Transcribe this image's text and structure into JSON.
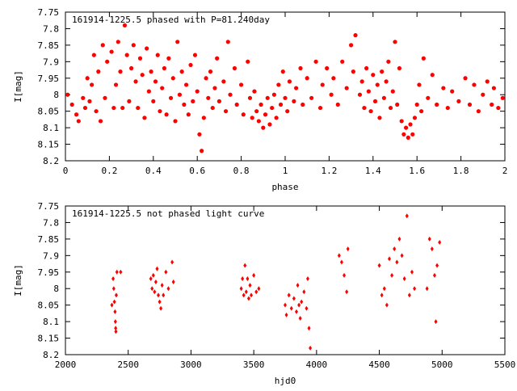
{
  "chart_data": [
    {
      "type": "scatter",
      "title": "161914-1225.5 phased with P=81.240day",
      "xlabel": "phase",
      "ylabel": "I[mag]",
      "xlim": [
        0,
        2
      ],
      "ylim": [
        7.75,
        8.2
      ],
      "y_inverted": true,
      "grid": false,
      "marker_color": "#ff0000",
      "marker": "filled circle",
      "xticks": [
        "0",
        "0.2",
        "0.4",
        "0.6",
        "0.8",
        "1",
        "1.2",
        "1.4",
        "1.6",
        "1.8",
        "2"
      ],
      "yticks": [
        "7.75",
        "7.8",
        "7.85",
        "7.9",
        "7.95",
        "8",
        "8.05",
        "8.1",
        "8.15",
        "8.2"
      ],
      "points": [
        [
          0.01,
          8.0
        ],
        [
          0.03,
          8.03
        ],
        [
          0.05,
          8.06
        ],
        [
          0.06,
          8.08
        ],
        [
          0.08,
          8.01
        ],
        [
          0.09,
          8.04
        ],
        [
          0.1,
          7.95
        ],
        [
          0.11,
          8.02
        ],
        [
          0.12,
          7.97
        ],
        [
          0.13,
          7.88
        ],
        [
          0.14,
          8.05
        ],
        [
          0.15,
          7.93
        ],
        [
          0.16,
          8.08
        ],
        [
          0.17,
          7.85
        ],
        [
          0.18,
          8.01
        ],
        [
          0.19,
          7.9
        ],
        [
          0.21,
          7.87
        ],
        [
          0.22,
          8.04
        ],
        [
          0.23,
          7.97
        ],
        [
          0.24,
          7.84
        ],
        [
          0.25,
          7.93
        ],
        [
          0.26,
          8.04
        ],
        [
          0.27,
          7.79
        ],
        [
          0.28,
          7.88
        ],
        [
          0.29,
          8.02
        ],
        [
          0.3,
          7.92
        ],
        [
          0.31,
          7.85
        ],
        [
          0.32,
          7.96
        ],
        [
          0.33,
          8.04
        ],
        [
          0.34,
          7.89
        ],
        [
          0.35,
          7.94
        ],
        [
          0.36,
          8.07
        ],
        [
          0.37,
          7.86
        ],
        [
          0.38,
          7.99
        ],
        [
          0.39,
          7.93
        ],
        [
          0.4,
          8.02
        ],
        [
          0.41,
          7.96
        ],
        [
          0.42,
          7.88
        ],
        [
          0.43,
          8.05
        ],
        [
          0.44,
          7.98
        ],
        [
          0.45,
          7.92
        ],
        [
          0.46,
          8.06
        ],
        [
          0.47,
          7.89
        ],
        [
          0.48,
          8.01
        ],
        [
          0.49,
          7.95
        ],
        [
          0.5,
          8.08
        ],
        [
          0.51,
          7.84
        ],
        [
          0.52,
          8.0
        ],
        [
          0.53,
          7.93
        ],
        [
          0.54,
          8.03
        ],
        [
          0.55,
          7.97
        ],
        [
          0.56,
          8.06
        ],
        [
          0.57,
          7.91
        ],
        [
          0.58,
          8.02
        ],
        [
          0.59,
          7.88
        ],
        [
          0.6,
          7.99
        ],
        [
          0.61,
          8.12
        ],
        [
          0.62,
          8.17
        ],
        [
          0.63,
          8.07
        ],
        [
          0.64,
          7.95
        ],
        [
          0.65,
          8.01
        ],
        [
          0.66,
          7.93
        ],
        [
          0.67,
          8.04
        ],
        [
          0.68,
          7.98
        ],
        [
          0.69,
          7.89
        ],
        [
          0.7,
          8.02
        ],
        [
          0.72,
          7.96
        ],
        [
          0.73,
          8.05
        ],
        [
          0.74,
          7.84
        ],
        [
          0.75,
          8.0
        ],
        [
          0.77,
          7.92
        ],
        [
          0.78,
          8.03
        ],
        [
          0.8,
          7.97
        ],
        [
          0.81,
          8.06
        ],
        [
          0.83,
          7.9
        ],
        [
          0.84,
          8.01
        ],
        [
          0.85,
          8.07
        ],
        [
          0.86,
          7.99
        ],
        [
          0.87,
          8.05
        ],
        [
          0.88,
          8.08
        ],
        [
          0.89,
          8.03
        ],
        [
          0.9,
          8.1
        ],
        [
          0.91,
          8.06
        ],
        [
          0.92,
          8.01
        ],
        [
          0.93,
          8.09
        ],
        [
          0.94,
          8.04
        ],
        [
          0.95,
          8.0
        ],
        [
          0.96,
          8.07
        ],
        [
          0.97,
          7.97
        ],
        [
          0.98,
          8.03
        ],
        [
          0.99,
          7.93
        ],
        [
          1.0,
          8.01
        ],
        [
          1.01,
          8.05
        ],
        [
          1.02,
          7.96
        ],
        [
          1.04,
          8.02
        ],
        [
          1.05,
          7.98
        ],
        [
          1.07,
          7.92
        ],
        [
          1.08,
          8.03
        ],
        [
          1.1,
          7.95
        ],
        [
          1.12,
          8.01
        ],
        [
          1.14,
          7.9
        ],
        [
          1.16,
          8.04
        ],
        [
          1.17,
          7.97
        ],
        [
          1.19,
          7.92
        ],
        [
          1.21,
          8.0
        ],
        [
          1.22,
          7.95
        ],
        [
          1.24,
          8.03
        ],
        [
          1.26,
          7.9
        ],
        [
          1.28,
          7.98
        ],
        [
          1.3,
          7.85
        ],
        [
          1.31,
          7.93
        ],
        [
          1.32,
          7.82
        ],
        [
          1.34,
          8.0
        ],
        [
          1.35,
          7.96
        ],
        [
          1.36,
          8.04
        ],
        [
          1.37,
          7.92
        ],
        [
          1.38,
          7.99
        ],
        [
          1.39,
          8.05
        ],
        [
          1.4,
          7.94
        ],
        [
          1.41,
          8.02
        ],
        [
          1.42,
          7.97
        ],
        [
          1.43,
          8.07
        ],
        [
          1.44,
          7.93
        ],
        [
          1.45,
          8.01
        ],
        [
          1.46,
          7.96
        ],
        [
          1.47,
          7.9
        ],
        [
          1.48,
          8.04
        ],
        [
          1.49,
          7.99
        ],
        [
          1.5,
          7.84
        ],
        [
          1.51,
          8.03
        ],
        [
          1.52,
          7.92
        ],
        [
          1.53,
          8.08
        ],
        [
          1.54,
          8.12
        ],
        [
          1.55,
          8.1
        ],
        [
          1.56,
          8.13
        ],
        [
          1.57,
          8.09
        ],
        [
          1.58,
          8.12
        ],
        [
          1.59,
          8.07
        ],
        [
          1.6,
          8.03
        ],
        [
          1.61,
          7.97
        ],
        [
          1.62,
          8.05
        ],
        [
          1.63,
          7.89
        ],
        [
          1.65,
          8.01
        ],
        [
          1.67,
          7.94
        ],
        [
          1.69,
          8.03
        ],
        [
          1.72,
          7.98
        ],
        [
          1.74,
          8.04
        ],
        [
          1.76,
          7.99
        ],
        [
          1.79,
          8.02
        ],
        [
          1.82,
          7.95
        ],
        [
          1.84,
          8.03
        ],
        [
          1.86,
          7.97
        ],
        [
          1.88,
          8.05
        ],
        [
          1.9,
          8.0
        ],
        [
          1.92,
          7.96
        ],
        [
          1.94,
          8.03
        ],
        [
          1.95,
          7.98
        ],
        [
          1.97,
          8.04
        ],
        [
          1.99,
          8.01
        ]
      ]
    },
    {
      "type": "scatter",
      "title": "161914-1225.5 not phased light curve",
      "xlabel": "hjd0",
      "ylabel": "I[mag]",
      "xlim": [
        2000,
        5500
      ],
      "ylim": [
        7.75,
        8.2
      ],
      "y_inverted": true,
      "grid": false,
      "marker_color": "#ff0000",
      "marker": "filled diamond",
      "xticks": [
        "2000",
        "2500",
        "3000",
        "3500",
        "4000",
        "4500",
        "5000",
        "5500"
      ],
      "yticks": [
        "7.75",
        "7.8",
        "7.85",
        "7.9",
        "7.95",
        "8",
        "8.05",
        "8.1",
        "8.15",
        "8.2"
      ],
      "points": [
        [
          2370,
          8.05
        ],
        [
          2380,
          7.97
        ],
        [
          2385,
          8.0
        ],
        [
          2390,
          8.04
        ],
        [
          2395,
          8.07
        ],
        [
          2398,
          8.1
        ],
        [
          2400,
          8.12
        ],
        [
          2402,
          8.13
        ],
        [
          2405,
          8.02
        ],
        [
          2410,
          7.95
        ],
        [
          2440,
          7.95
        ],
        [
          2680,
          7.97
        ],
        [
          2690,
          8.0
        ],
        [
          2700,
          7.96
        ],
        [
          2710,
          8.01
        ],
        [
          2720,
          7.98
        ],
        [
          2730,
          7.94
        ],
        [
          2740,
          8.02
        ],
        [
          2750,
          8.04
        ],
        [
          2760,
          8.06
        ],
        [
          2770,
          7.99
        ],
        [
          2780,
          8.02
        ],
        [
          2800,
          7.95
        ],
        [
          2820,
          8.0
        ],
        [
          2850,
          7.92
        ],
        [
          2860,
          7.98
        ],
        [
          3400,
          8.0
        ],
        [
          3410,
          7.97
        ],
        [
          3420,
          8.02
        ],
        [
          3430,
          7.93
        ],
        [
          3440,
          8.01
        ],
        [
          3450,
          7.97
        ],
        [
          3460,
          8.03
        ],
        [
          3470,
          7.99
        ],
        [
          3480,
          8.02
        ],
        [
          3500,
          7.96
        ],
        [
          3520,
          8.01
        ],
        [
          3540,
          8.0
        ],
        [
          3750,
          8.05
        ],
        [
          3760,
          8.08
        ],
        [
          3780,
          8.02
        ],
        [
          3800,
          8.06
        ],
        [
          3820,
          8.03
        ],
        [
          3840,
          8.07
        ],
        [
          3850,
          7.99
        ],
        [
          3860,
          8.05
        ],
        [
          3870,
          8.09
        ],
        [
          3880,
          8.04
        ],
        [
          3900,
          8.01
        ],
        [
          3920,
          8.06
        ],
        [
          3930,
          7.97
        ],
        [
          3940,
          8.12
        ],
        [
          3950,
          8.18
        ],
        [
          4180,
          7.9
        ],
        [
          4200,
          7.92
        ],
        [
          4220,
          7.96
        ],
        [
          4240,
          8.01
        ],
        [
          4250,
          7.88
        ],
        [
          4500,
          7.93
        ],
        [
          4520,
          8.02
        ],
        [
          4540,
          8.0
        ],
        [
          4560,
          8.05
        ],
        [
          4580,
          7.91
        ],
        [
          4600,
          7.96
        ],
        [
          4620,
          7.88
        ],
        [
          4640,
          7.92
        ],
        [
          4660,
          7.85
        ],
        [
          4680,
          7.9
        ],
        [
          4700,
          7.97
        ],
        [
          4720,
          7.78
        ],
        [
          4740,
          8.02
        ],
        [
          4760,
          7.95
        ],
        [
          4780,
          8.0
        ],
        [
          4880,
          8.0
        ],
        [
          4900,
          7.85
        ],
        [
          4920,
          7.88
        ],
        [
          4940,
          7.96
        ],
        [
          4950,
          8.1
        ],
        [
          4960,
          7.93
        ],
        [
          4980,
          7.86
        ]
      ]
    }
  ]
}
